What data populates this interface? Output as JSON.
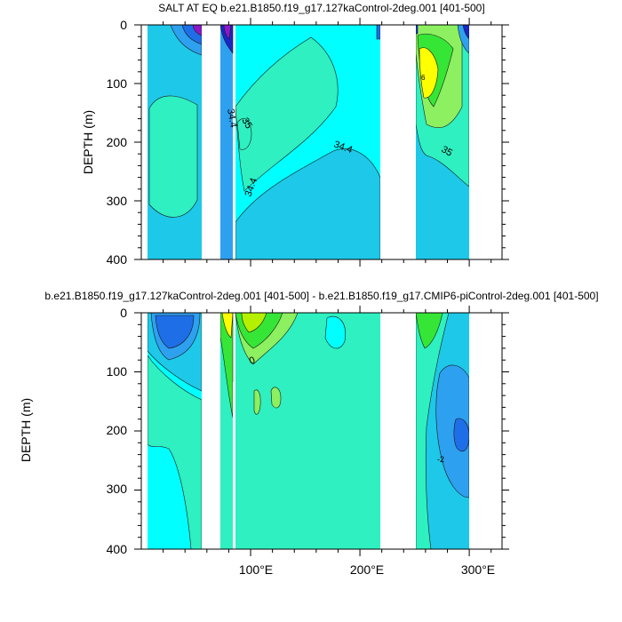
{
  "figure": {
    "top_title": "SALT AT EQ b.e21.B1850.f19_g17.127kaControl-2deg.001 [401-500]",
    "bottom_title": "b.e21.B1850.f19_g17.127kaControl-2deg.001 [401-500] - b.e21.B1850.f19_g17.CMIP6-piControl-2deg.001 [401-500]"
  },
  "colors": {
    "fill_mid": "#00ffff",
    "fill_light": "#00e8c8",
    "fill_mint": "#2ef0c0",
    "fill_teal": "#1ec8e8",
    "fill_sky": "#2ea0f0",
    "fill_blue": "#1e6ee8",
    "fill_navy": "#1828c8",
    "fill_violet": "#8c18c8",
    "fill_green_light": "#8cf060",
    "fill_green": "#36e636",
    "fill_yellow": "#ffff00",
    "fill_lime": "#b4f000",
    "land": "#ffffff"
  },
  "chart_data": [
    {
      "type": "heatmap",
      "title": "SALT AT EQ b.e21.B1850.f19_g17.127kaControl-2deg.001 [401-500]",
      "ylabel": "DEPTH (m)",
      "ylim": [
        400,
        0
      ],
      "y_ticks": [
        "0",
        "100",
        "200",
        "300",
        "400"
      ],
      "x_range": [
        0,
        330
      ],
      "contour_labels": [
        "34.4",
        "35",
        "34.4",
        "34.4",
        "35",
        "6"
      ]
    },
    {
      "type": "heatmap",
      "title": "b.e21.B1850.f19_g17.127kaControl-2deg.001 [401-500] - b.e21.B1850.f19_g17.CMIP6-piControl-2deg.001 [401-500]",
      "ylabel": "DEPTH (m)",
      "ylim": [
        400,
        0
      ],
      "y_ticks": [
        "0",
        "100",
        "200",
        "300",
        "400"
      ],
      "x_ticks": [
        "100°E",
        "200°E",
        "300°E"
      ],
      "x_range": [
        0,
        330
      ],
      "contour_labels": [
        "0",
        "-2"
      ]
    }
  ]
}
